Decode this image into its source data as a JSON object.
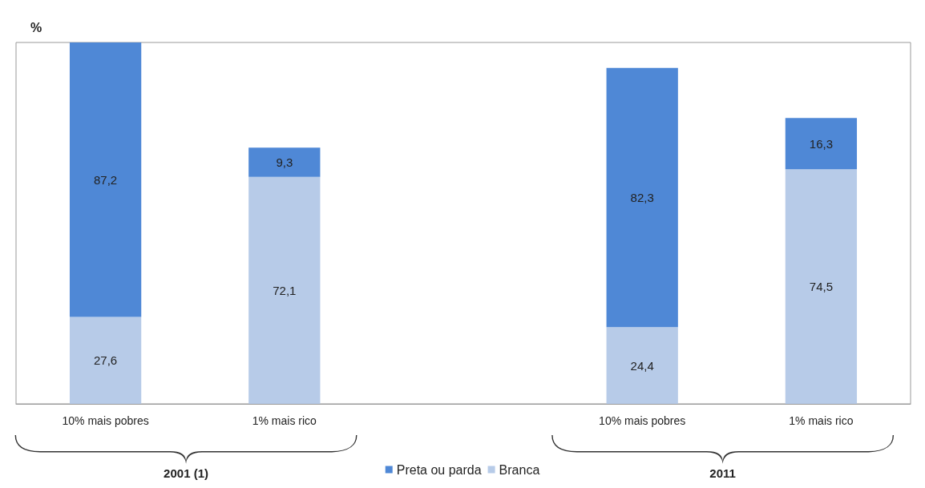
{
  "chart_data": {
    "type": "bar",
    "ylabel": "%",
    "stacked": true,
    "legend": "bottom",
    "categories": [
      "10% mais pobres",
      "1% mais rico",
      null,
      "10% mais pobres",
      "1% mais rico"
    ],
    "series": [
      {
        "name": "Branca",
        "color": "#b7cbe8",
        "values": [
          27.6,
          72.1,
          null,
          24.4,
          74.5
        ],
        "value_labels": [
          "27,6",
          "72,1",
          null,
          "24,4",
          "74,5"
        ]
      },
      {
        "name": "Preta ou parda",
        "color": "#4f88d6",
        "values": [
          87.2,
          9.3,
          null,
          82.3,
          16.3
        ],
        "value_labels": [
          "87,2",
          "9,3",
          null,
          "82,3",
          "16,3"
        ]
      }
    ],
    "annotations": [
      "2001 (1)",
      "2011"
    ]
  }
}
